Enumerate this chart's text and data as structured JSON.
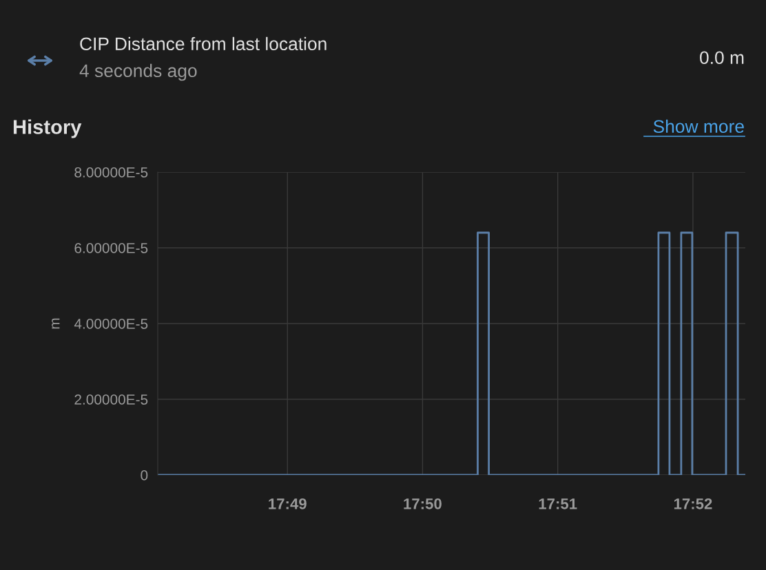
{
  "chart_data": {
    "type": "step",
    "title": "CIP Distance from last location",
    "subtitle": "4 seconds ago",
    "ylabel": "m",
    "annotations": [
      "0.0 m",
      "History",
      "Show more"
    ],
    "x": [
      17.80068,
      17.84013,
      17.8415,
      17.86242,
      17.86378,
      17.86522,
      17.86658,
      17.87075,
      17.8722,
      17.87313
    ],
    "series": [
      {
        "color": "#5b7fa8",
        "values": [
          0,
          6.4e-05,
          0,
          6.4e-05,
          0,
          6.4e-05,
          0,
          6.4e-05,
          0,
          0
        ]
      }
    ],
    "xlim": [
      17.80068,
      17.87313
    ],
    "xticks": [
      {
        "value": 17.81667,
        "label": "17:49"
      },
      {
        "value": 17.83333,
        "label": "17:50"
      },
      {
        "value": 17.85,
        "label": "17:51"
      },
      {
        "value": 17.86667,
        "label": "17:52"
      }
    ],
    "ylim": [
      0,
      8e-05
    ],
    "yticks": [
      0,
      {
        "value": 2e-05,
        "label": "2.00000E-5"
      },
      {
        "value": 4e-05,
        "label": "4.00000E-5"
      },
      {
        "value": 6e-05,
        "label": "6.00000E-5"
      },
      {
        "value": 8e-05,
        "label": "8.00000E-5"
      }
    ],
    "grid": true,
    "line_style": "solid",
    "marker": "none",
    "legend": false
  }
}
